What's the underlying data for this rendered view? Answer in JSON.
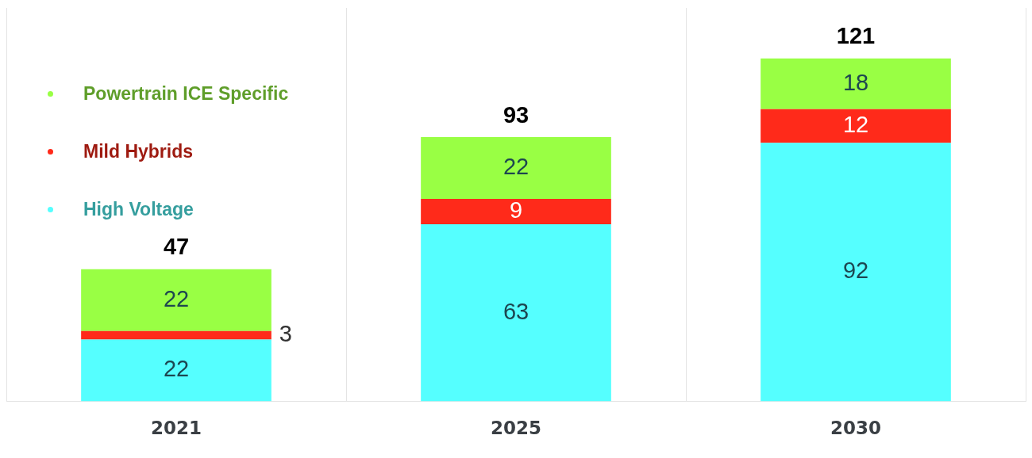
{
  "chart_data": {
    "type": "bar",
    "stacked": true,
    "categories": [
      "2021",
      "2025",
      "2030"
    ],
    "series": [
      {
        "name": "High Voltage",
        "color": "#55ffff",
        "values": [
          22,
          63,
          92
        ]
      },
      {
        "name": "Mild Hybrids",
        "color": "#ff2a1a",
        "values": [
          3,
          9,
          12
        ]
      },
      {
        "name": "Powertrain ICE Specific",
        "color": "#99ff44",
        "values": [
          22,
          22,
          18
        ]
      }
    ],
    "data_labels": true,
    "totals": [
      "47",
      "93",
      "121"
    ],
    "grid": "x",
    "legend": "top left"
  }
}
